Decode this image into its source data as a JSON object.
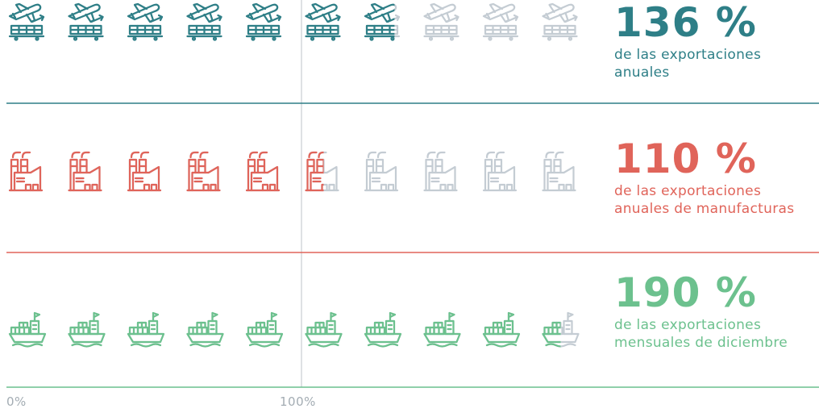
{
  "chart_data": {
    "type": "pictogram",
    "icons_per_row": 10,
    "series": [
      {
        "name": "136 %",
        "value": 136,
        "description": "de las exportaciones anuales",
        "description_lines": [
          "de las exportaciones",
          "anuales"
        ],
        "icon": "plane-cargo-icon",
        "color": "#2e7f87"
      },
      {
        "name": "110 %",
        "value": 110,
        "description": "de las exportaciones anuales de manufacturas",
        "description_lines": [
          "de las exportaciones",
          "anuales de manufacturas"
        ],
        "icon": "factory-icon",
        "color": "#e0645a"
      },
      {
        "name": "190 %",
        "value": 190,
        "description": "de las exportaciones mensuales de diciembre",
        "description_lines": [
          "de las exportaciones",
          "mensuales de diciembre"
        ],
        "icon": "ship-icon",
        "color": "#6cc18e"
      }
    ],
    "axis_ticks": [
      "0%",
      "100%"
    ],
    "inactive_color": "#c4ccd3",
    "reference_line_color": "#c8cdd2"
  }
}
